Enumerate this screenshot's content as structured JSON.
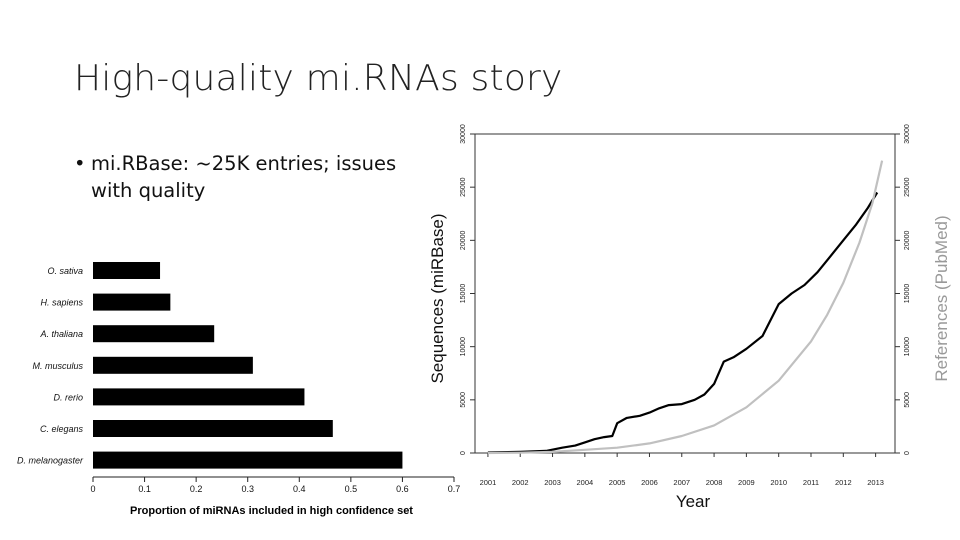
{
  "slide": {
    "title": "High-quality mi.RNAs story",
    "bullet": "mi.RBase: ~25K entries; issues with quality"
  },
  "chart_data": [
    {
      "type": "bar",
      "orientation": "horizontal",
      "categories": [
        "O. sativa",
        "H. sapiens",
        "A. thaliana",
        "M. musculus",
        "D. rerio",
        "C. elegans",
        "D. melanogaster"
      ],
      "values": [
        0.13,
        0.15,
        0.235,
        0.31,
        0.41,
        0.465,
        0.6
      ],
      "xlabel": "Proportion of miRNAs included in high confidence set",
      "xlim": [
        0,
        0.7
      ],
      "xticks": [
        "0",
        "0.1",
        "0.2",
        "0.3",
        "0.4",
        "0.5",
        "0.6",
        "0.7"
      ],
      "bar_color": "#000000"
    },
    {
      "type": "line",
      "xlabel": "Year",
      "ylabel_left": "Sequences (miRBase)",
      "ylabel_right": "References (PubMed)",
      "xlim": [
        2000.6,
        2013.6
      ],
      "ylim": [
        0,
        30000
      ],
      "xticks": [
        "2001",
        "2002",
        "2003",
        "2004",
        "2005",
        "2006",
        "2007",
        "2008",
        "2009",
        "2010",
        "2011",
        "2012",
        "2013"
      ],
      "yticks": [
        "0",
        "5000",
        "10000",
        "15000",
        "20000",
        "25000",
        "30000"
      ],
      "series": [
        {
          "name": "Sequences (miRBase)",
          "color": "#000000",
          "x": [
            2001.0,
            2002.0,
            2002.8,
            2003.3,
            2003.7,
            2004.0,
            2004.3,
            2004.6,
            2004.85,
            2005.0,
            2005.3,
            2005.7,
            2006.0,
            2006.3,
            2006.6,
            2007.0,
            2007.4,
            2007.7,
            2008.0,
            2008.3,
            2008.6,
            2009.0,
            2009.5,
            2009.8,
            2010.0,
            2010.4,
            2010.8,
            2011.2,
            2011.6,
            2012.0,
            2012.4,
            2012.75,
            2013.05
          ],
          "y": [
            50,
            100,
            200,
            500,
            700,
            1000,
            1300,
            1500,
            1600,
            2800,
            3300,
            3500,
            3800,
            4200,
            4500,
            4600,
            5000,
            5500,
            6500,
            8600,
            9000,
            9800,
            11000,
            12800,
            14000,
            15000,
            15800,
            17000,
            18500,
            20000,
            21500,
            23000,
            24500
          ]
        },
        {
          "name": "References (PubMed)",
          "color": "#c0c0c0",
          "x": [
            2001.0,
            2002.0,
            2003.0,
            2004.0,
            2005.0,
            2006.0,
            2007.0,
            2008.0,
            2009.0,
            2010.0,
            2011.0,
            2011.5,
            2012.0,
            2012.5,
            2012.9,
            2013.2
          ],
          "y": [
            0,
            30,
            100,
            300,
            500,
            900,
            1600,
            2600,
            4300,
            6800,
            10500,
            13000,
            16000,
            19800,
            23500,
            27500
          ]
        }
      ]
    }
  ]
}
